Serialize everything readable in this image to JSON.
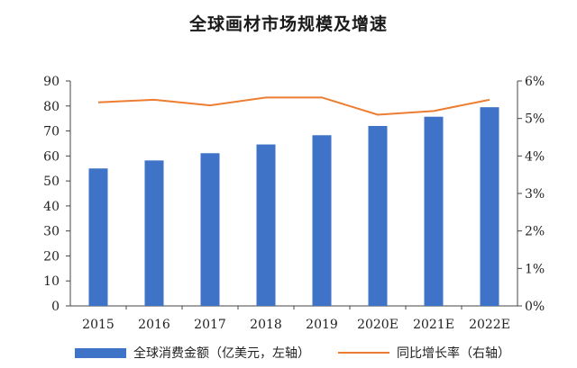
{
  "chart_data": {
    "type": "bar",
    "title": "全球画材市场规模及增速",
    "categories": [
      "2015",
      "2016",
      "2017",
      "2018",
      "2019",
      "2020E",
      "2021E",
      "2022E"
    ],
    "series": [
      {
        "name": "全球消费金额（亿美元，左轴）",
        "type": "bar",
        "axis": "left",
        "color": "#3f73c8",
        "values": [
          55,
          58.2,
          61.1,
          64.6,
          68.3,
          72,
          75.7,
          79.5
        ]
      },
      {
        "name": "同比增长率（右轴）",
        "type": "line",
        "axis": "right",
        "color": "#ed7d31",
        "values": [
          5.43,
          5.5,
          5.35,
          5.56,
          5.56,
          5.1,
          5.2,
          5.5
        ]
      }
    ],
    "y_left": {
      "min": 0,
      "max": 90,
      "step": 10,
      "ticks": [
        "0",
        "10",
        "20",
        "30",
        "40",
        "50",
        "60",
        "70",
        "80",
        "90"
      ]
    },
    "y_right": {
      "min": 0,
      "max": 6,
      "step": 1,
      "ticks": [
        "0%",
        "1%",
        "2%",
        "3%",
        "4%",
        "5%",
        "6%"
      ]
    },
    "grid": false,
    "legend_position": "bottom"
  }
}
